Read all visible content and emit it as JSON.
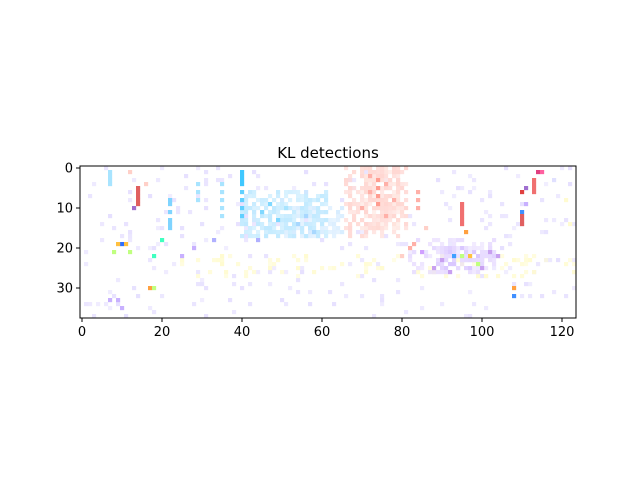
{
  "chart_data": {
    "type": "heatmap",
    "title": "KL detections",
    "xlabel": "",
    "ylabel": "",
    "xlim": [
      -0.5,
      123.5
    ],
    "ylim": [
      37.5,
      -0.5
    ],
    "x_ticks": [
      0,
      20,
      40,
      60,
      80,
      100,
      120
    ],
    "y_ticks": [
      0,
      10,
      20,
      30
    ],
    "grid": false,
    "legend": "none",
    "background": "#ffffff",
    "color_regions": [
      {
        "color": "#bfe9ff",
        "x_range": [
          40,
          62
        ],
        "y_range": [
          6,
          18
        ],
        "density": 0.55
      },
      {
        "color": "#d6ecff",
        "x_range": [
          50,
          66
        ],
        "y_range": [
          10,
          18
        ],
        "density": 0.45
      },
      {
        "color": "#ffd6d1",
        "x_range": [
          66,
          82
        ],
        "y_range": [
          0,
          18
        ],
        "density": 0.5
      },
      {
        "color": "#ffe3dc",
        "x_range": [
          70,
          80
        ],
        "y_range": [
          0,
          16
        ],
        "density": 0.5
      },
      {
        "color": "#e8dcff",
        "x_range": [
          82,
          104
        ],
        "y_range": [
          18,
          27
        ],
        "density": 0.35
      },
      {
        "color": "#d9c6ff",
        "x_range": [
          88,
          104
        ],
        "y_range": [
          20,
          26
        ],
        "density": 0.4
      },
      {
        "color": "#fffbd0",
        "x_range": [
          25,
          125
        ],
        "y_range": [
          22,
          28
        ],
        "density": 0.12
      },
      {
        "color": "#e6e0ff",
        "x_range": [
          0,
          124
        ],
        "y_range": [
          0,
          38
        ],
        "density": 0.05
      }
    ],
    "cells": [
      {
        "x": 14,
        "y": 5,
        "color": "#e06060"
      },
      {
        "x": 14,
        "y": 6,
        "color": "#e06060"
      },
      {
        "x": 14,
        "y": 7,
        "color": "#e06060"
      },
      {
        "x": 14,
        "y": 8,
        "color": "#e06060"
      },
      {
        "x": 14,
        "y": 9,
        "color": "#e06060"
      },
      {
        "x": 13,
        "y": 10,
        "color": "#a070d0"
      },
      {
        "x": 7,
        "y": 1,
        "color": "#a8e4ff"
      },
      {
        "x": 7,
        "y": 2,
        "color": "#a8e4ff"
      },
      {
        "x": 7,
        "y": 3,
        "color": "#a8e4ff"
      },
      {
        "x": 7,
        "y": 4,
        "color": "#a8e4ff"
      },
      {
        "x": 12,
        "y": 1,
        "color": "#ffd0c8"
      },
      {
        "x": 16,
        "y": 4,
        "color": "#ffd0c8"
      },
      {
        "x": 22,
        "y": 8,
        "color": "#7fd4ff"
      },
      {
        "x": 22,
        "y": 9,
        "color": "#7fd4ff"
      },
      {
        "x": 22,
        "y": 11,
        "color": "#7fd4ff"
      },
      {
        "x": 22,
        "y": 13,
        "color": "#7fd4ff"
      },
      {
        "x": 22,
        "y": 14,
        "color": "#7fd4ff"
      },
      {
        "x": 22,
        "y": 15,
        "color": "#7fd4ff"
      },
      {
        "x": 40,
        "y": 1,
        "color": "#40c8ff"
      },
      {
        "x": 40,
        "y": 2,
        "color": "#40c8ff"
      },
      {
        "x": 40,
        "y": 3,
        "color": "#40c8ff"
      },
      {
        "x": 40,
        "y": 4,
        "color": "#40c8ff"
      },
      {
        "x": 40,
        "y": 6,
        "color": "#60d0ff"
      },
      {
        "x": 40,
        "y": 8,
        "color": "#60d0ff"
      },
      {
        "x": 40,
        "y": 10,
        "color": "#60d0ff"
      },
      {
        "x": 40,
        "y": 12,
        "color": "#60d0ff"
      },
      {
        "x": 35,
        "y": 4,
        "color": "#a8e4ff"
      },
      {
        "x": 35,
        "y": 6,
        "color": "#a8e4ff"
      },
      {
        "x": 35,
        "y": 8,
        "color": "#a8e4ff"
      },
      {
        "x": 35,
        "y": 10,
        "color": "#a8e4ff"
      },
      {
        "x": 35,
        "y": 12,
        "color": "#a8e4ff"
      },
      {
        "x": 29,
        "y": 4,
        "color": "#a8e4ff"
      },
      {
        "x": 29,
        "y": 6,
        "color": "#a8e4ff"
      },
      {
        "x": 29,
        "y": 8,
        "color": "#a8e4ff"
      },
      {
        "x": 10,
        "y": 19,
        "color": "#3070ff"
      },
      {
        "x": 9,
        "y": 19,
        "color": "#ffc040"
      },
      {
        "x": 11,
        "y": 19,
        "color": "#ffc040"
      },
      {
        "x": 8,
        "y": 21,
        "color": "#c0ff80"
      },
      {
        "x": 12,
        "y": 21,
        "color": "#c0ff80"
      },
      {
        "x": 20,
        "y": 18,
        "color": "#40ffc0"
      },
      {
        "x": 18,
        "y": 22,
        "color": "#40ffc0"
      },
      {
        "x": 17,
        "y": 30,
        "color": "#ffa040"
      },
      {
        "x": 18,
        "y": 30,
        "color": "#c0ff80"
      },
      {
        "x": 7,
        "y": 33,
        "color": "#c8b0ff"
      },
      {
        "x": 9,
        "y": 33,
        "color": "#c8b0ff"
      },
      {
        "x": 10,
        "y": 35,
        "color": "#c8b0ff"
      },
      {
        "x": 95,
        "y": 9,
        "color": "#f07070"
      },
      {
        "x": 95,
        "y": 10,
        "color": "#f07070"
      },
      {
        "x": 95,
        "y": 11,
        "color": "#f07070"
      },
      {
        "x": 95,
        "y": 12,
        "color": "#f07070"
      },
      {
        "x": 95,
        "y": 13,
        "color": "#f07070"
      },
      {
        "x": 95,
        "y": 14,
        "color": "#f07070"
      },
      {
        "x": 96,
        "y": 16,
        "color": "#ffa040"
      },
      {
        "x": 110,
        "y": 6,
        "color": "#e04040"
      },
      {
        "x": 110,
        "y": 11,
        "color": "#4090ff"
      },
      {
        "x": 110,
        "y": 12,
        "color": "#e06060"
      },
      {
        "x": 110,
        "y": 13,
        "color": "#e06060"
      },
      {
        "x": 110,
        "y": 14,
        "color": "#e06060"
      },
      {
        "x": 113,
        "y": 3,
        "color": "#f07070"
      },
      {
        "x": 113,
        "y": 4,
        "color": "#f07070"
      },
      {
        "x": 113,
        "y": 5,
        "color": "#f07070"
      },
      {
        "x": 113,
        "y": 6,
        "color": "#f07070"
      },
      {
        "x": 114,
        "y": 1,
        "color": "#e04080"
      },
      {
        "x": 115,
        "y": 1,
        "color": "#ff60a0"
      },
      {
        "x": 108,
        "y": 32,
        "color": "#4090ff"
      },
      {
        "x": 108,
        "y": 30,
        "color": "#ffa040"
      },
      {
        "x": 93,
        "y": 22,
        "color": "#40a0ff"
      },
      {
        "x": 95,
        "y": 22,
        "color": "#c0ff80"
      },
      {
        "x": 97,
        "y": 22,
        "color": "#ffc040"
      },
      {
        "x": 99,
        "y": 24,
        "color": "#c0ff80"
      },
      {
        "x": 111,
        "y": 5,
        "color": "#a070d0"
      },
      {
        "x": 111,
        "y": 9,
        "color": "#c8b0ff"
      },
      {
        "x": 86,
        "y": 15,
        "color": "#ffd0c8"
      },
      {
        "x": 84,
        "y": 6,
        "color": "#ffb0a8"
      },
      {
        "x": 84,
        "y": 8,
        "color": "#ffb0a8"
      },
      {
        "x": 84,
        "y": 10,
        "color": "#ffb0a8"
      },
      {
        "x": 74,
        "y": 3,
        "color": "#ff9c90"
      },
      {
        "x": 74,
        "y": 5,
        "color": "#ff9c90"
      },
      {
        "x": 74,
        "y": 7,
        "color": "#ff9c90"
      },
      {
        "x": 74,
        "y": 9,
        "color": "#ff9c90"
      },
      {
        "x": 72,
        "y": 2,
        "color": "#ffb0a8"
      },
      {
        "x": 72,
        "y": 6,
        "color": "#ffb0a8"
      },
      {
        "x": 76,
        "y": 4,
        "color": "#ffb0a8"
      },
      {
        "x": 76,
        "y": 12,
        "color": "#ffb0a8"
      },
      {
        "x": 78,
        "y": 8,
        "color": "#ffb0a8"
      },
      {
        "x": 70,
        "y": 10,
        "color": "#ffb0a8"
      },
      {
        "x": 82,
        "y": 20,
        "color": "#ffb0a8"
      },
      {
        "x": 80,
        "y": 22,
        "color": "#ffd0c8"
      },
      {
        "x": 83,
        "y": 19,
        "color": "#ffb0a8"
      },
      {
        "x": 44,
        "y": 18,
        "color": "#b0b0ff"
      },
      {
        "x": 33,
        "y": 18,
        "color": "#b0b0ff"
      },
      {
        "x": 28,
        "y": 20,
        "color": "#c8b0ff"
      },
      {
        "x": 25,
        "y": 22,
        "color": "#c8b0ff"
      },
      {
        "x": 54,
        "y": 14,
        "color": "#a8d8ff"
      },
      {
        "x": 56,
        "y": 12,
        "color": "#a8d8ff"
      },
      {
        "x": 58,
        "y": 16,
        "color": "#a8d8ff"
      },
      {
        "x": 47,
        "y": 9,
        "color": "#80d8ff"
      },
      {
        "x": 45,
        "y": 11,
        "color": "#80d8ff"
      },
      {
        "x": 49,
        "y": 13,
        "color": "#80d8ff"
      },
      {
        "x": 51,
        "y": 10,
        "color": "#a8e4ff"
      },
      {
        "x": 102,
        "y": 21,
        "color": "#c8a0f0"
      },
      {
        "x": 104,
        "y": 22,
        "color": "#c8a0f0"
      },
      {
        "x": 100,
        "y": 25,
        "color": "#c8a0f0"
      },
      {
        "x": 90,
        "y": 23,
        "color": "#c8a0f0"
      },
      {
        "x": 88,
        "y": 25,
        "color": "#c8a0f0"
      },
      {
        "x": 92,
        "y": 26,
        "color": "#c8a0f0"
      },
      {
        "x": 85,
        "y": 21,
        "color": "#d0a0ff"
      },
      {
        "x": 118,
        "y": 3,
        "color": "#e0e0ff"
      },
      {
        "x": 121,
        "y": 8,
        "color": "#fffbd0"
      },
      {
        "x": 122,
        "y": 14,
        "color": "#fffbd0"
      }
    ]
  }
}
